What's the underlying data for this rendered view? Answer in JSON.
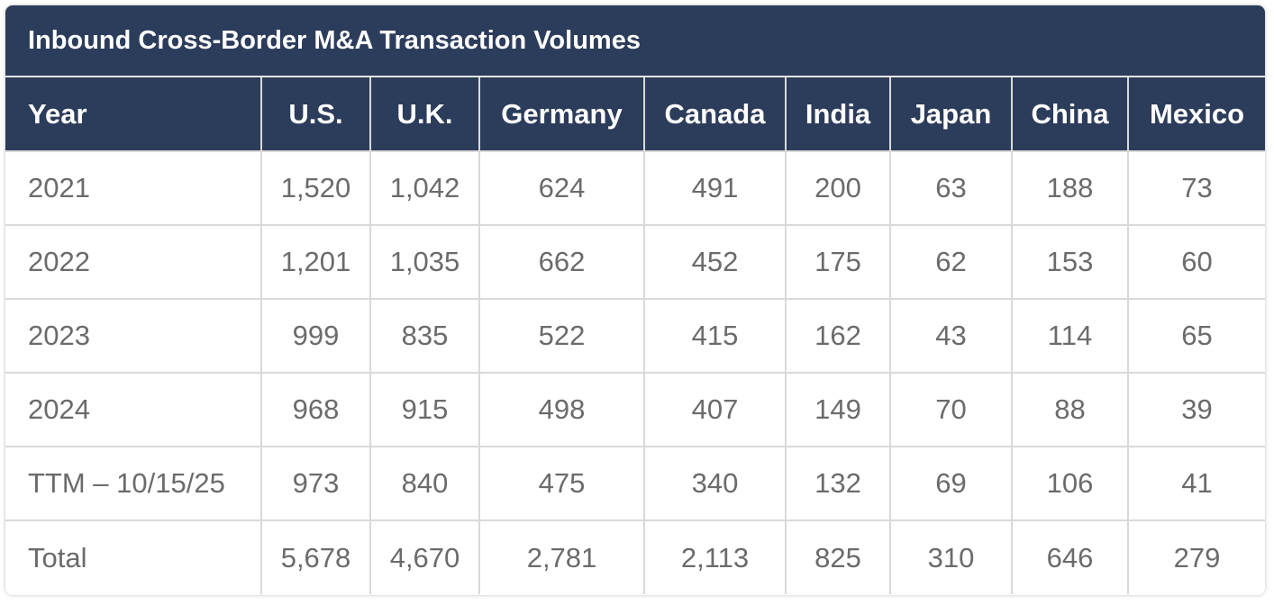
{
  "title": "Inbound Cross-Border M&A Transaction Volumes",
  "columns": [
    "Year",
    "U.S.",
    "U.K.",
    "Germany",
    "Canada",
    "India",
    "Japan",
    "China",
    "Mexico"
  ],
  "rows": [
    [
      "2021",
      "1,520",
      "1,042",
      "624",
      "491",
      "200",
      "63",
      "188",
      "73"
    ],
    [
      "2022",
      "1,201",
      "1,035",
      "662",
      "452",
      "175",
      "62",
      "153",
      "60"
    ],
    [
      "2023",
      "999",
      "835",
      "522",
      "415",
      "162",
      "43",
      "114",
      "65"
    ],
    [
      "2024",
      "968",
      "915",
      "498",
      "407",
      "149",
      "70",
      "88",
      "39"
    ],
    [
      "TTM – 10/15/25",
      "973",
      "840",
      "475",
      "340",
      "132",
      "69",
      "106",
      "41"
    ],
    [
      "Total",
      "5,678",
      "4,670",
      "2,781",
      "2,113",
      "825",
      "310",
      "646",
      "279"
    ]
  ],
  "colors": {
    "header_bg": "#2c3c5b",
    "header_text": "#ffffff",
    "cell_text": "#6b6b6b",
    "border": "#d9d9d9"
  }
}
